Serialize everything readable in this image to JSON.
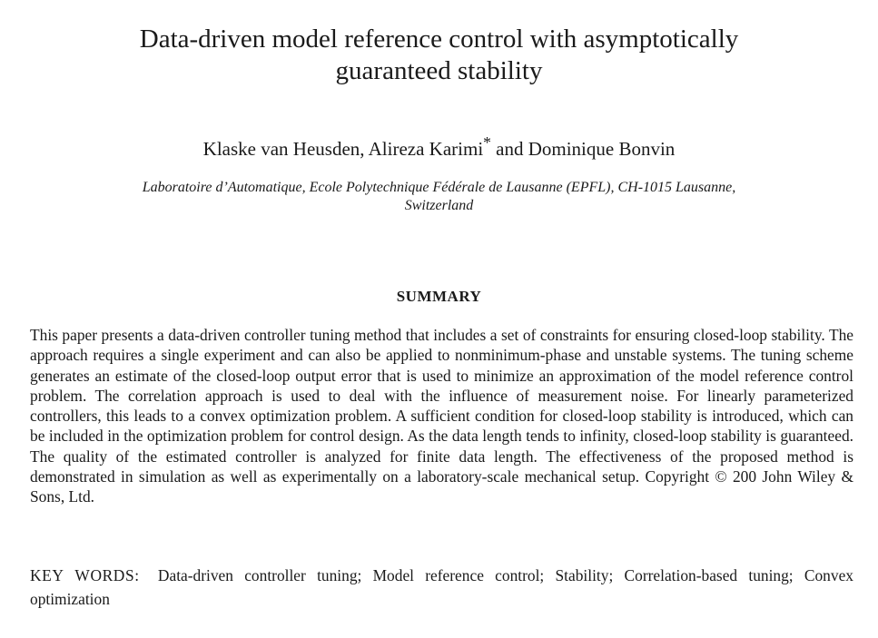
{
  "paper": {
    "title_line1": "Data-driven model reference control with asymptotically",
    "title_line2": "guaranteed stability",
    "authors_a": "Klaske van Heusden, Alireza Karimi",
    "authors_marker": "*",
    "authors_b": " and Dominique Bonvin",
    "affiliation_line1": "Laboratoire d’Automatique, Ecole Polytechnique Fédérale de Lausanne (EPFL), CH-1015 Lausanne,",
    "affiliation_line2": "Switzerland",
    "summary_heading": "SUMMARY",
    "abstract": "This paper presents a data-driven controller tuning method that includes a set of constraints for ensuring closed-loop stability. The approach requires a single experiment and can also be applied to nonminimum-phase and unstable systems. The tuning scheme generates an estimate of the closed-loop output error that is used to minimize an approximation of the model reference control problem. The correlation approach is used to deal with the influence of measurement noise. For linearly parameterized controllers, this leads to a convex optimization problem. A sufficient condition for closed-loop stability is introduced, which can be included in the optimization problem for control design. As the data length tends to infinity, closed-loop stability is guaranteed. The quality of the estimated controller is analyzed for finite data length. The effectiveness of the proposed method is demonstrated in simulation as well as experimentally on a laboratory-scale mechanical setup. Copyright © 200 John Wiley & Sons, Ltd.",
    "keywords_label": "KEY WORDS:",
    "keywords": "Data-driven controller tuning; Model reference control; Stability; Correlation-based tuning; Convex optimization"
  }
}
